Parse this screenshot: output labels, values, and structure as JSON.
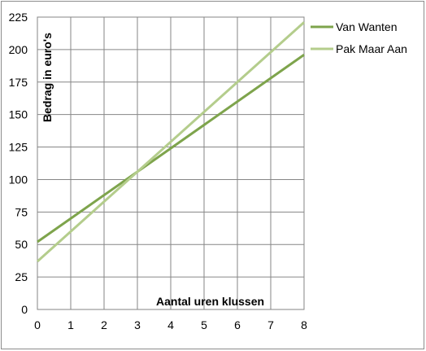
{
  "chart_data": {
    "type": "line",
    "title": "",
    "xlabel": "Aantal uren klussen",
    "ylabel": "Bedrag in euro's",
    "xlim": [
      0,
      8
    ],
    "ylim": [
      0,
      225
    ],
    "x_ticks": [
      "0",
      "1",
      "2",
      "3",
      "4",
      "5",
      "6",
      "7",
      "8"
    ],
    "y_ticks": [
      "0",
      "25",
      "50",
      "75",
      "100",
      "125",
      "150",
      "175",
      "200",
      "225"
    ],
    "grid": true,
    "legend_position": "right",
    "x": [
      0,
      8
    ],
    "series": [
      {
        "name": "Van Wanten",
        "color": "#7ea44c",
        "values": [
          52,
          196
        ]
      },
      {
        "name": "Pak Maar Aan",
        "color": "#b4cd8c",
        "values": [
          37,
          221
        ]
      }
    ]
  }
}
